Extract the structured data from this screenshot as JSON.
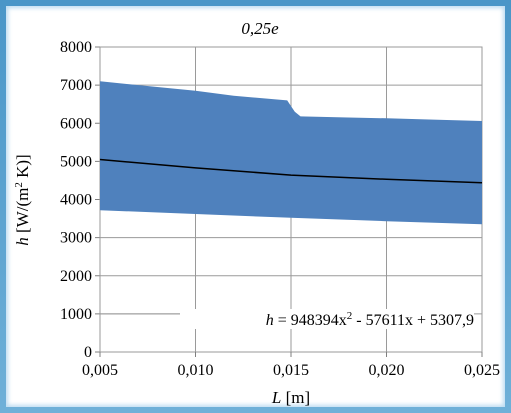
{
  "chart_data": {
    "type": "area",
    "title": "0,25e",
    "xlabel": "L [m]",
    "xlabel_var": "L",
    "xlabel_unit": "[m]",
    "ylabel": "h [W/(m² K)]",
    "ylabel_var": "h",
    "ylabel_unit": "[W/(m",
    "ylabel_unit_sup": "2",
    "ylabel_unit_tail": " K)]",
    "xlim": [
      0.005,
      0.025
    ],
    "ylim": [
      0,
      8000
    ],
    "x_ticks": [
      "0,005",
      "0,010",
      "0,015",
      "0,020",
      "0,025"
    ],
    "x_tick_values": [
      0.005,
      0.01,
      0.015,
      0.02,
      0.025
    ],
    "y_ticks": [
      "0",
      "1000",
      "2000",
      "3000",
      "4000",
      "5000",
      "6000",
      "7000",
      "8000"
    ],
    "y_tick_values": [
      0,
      1000,
      2000,
      3000,
      4000,
      5000,
      6000,
      7000,
      8000
    ],
    "grid": true,
    "band_color": "#4f81bd",
    "trend_color": "#000000",
    "band_upper": {
      "x": [
        0.005,
        0.008,
        0.01,
        0.012,
        0.0148,
        0.015,
        0.0152,
        0.0155,
        0.018,
        0.02,
        0.022,
        0.025
      ],
      "y": [
        7100,
        6950,
        6850,
        6720,
        6600,
        6450,
        6300,
        6180,
        6150,
        6130,
        6100,
        6060
      ]
    },
    "band_lower": {
      "x": [
        0.005,
        0.01,
        0.015,
        0.02,
        0.025
      ],
      "y": [
        3720,
        3620,
        3520,
        3430,
        3350
      ]
    },
    "trendline": {
      "x": [
        0.005,
        0.01,
        0.015,
        0.02,
        0.025
      ],
      "y": [
        5050,
        4830,
        4640,
        4530,
        4440
      ]
    },
    "equation": {
      "lhs": "h",
      "text_a": " = 948394x",
      "sup": "2",
      "text_b": " - 57611x + 5307,9"
    }
  }
}
